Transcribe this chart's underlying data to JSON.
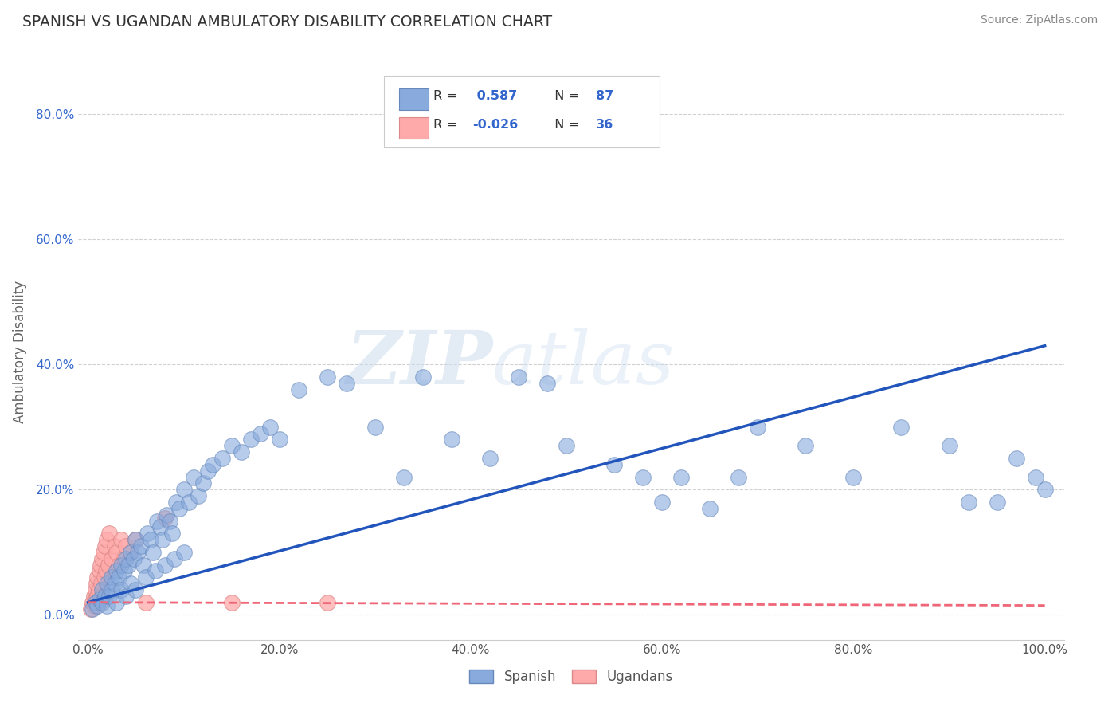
{
  "title": "SPANISH VS UGANDAN AMBULATORY DISABILITY CORRELATION CHART",
  "source_text": "Source: ZipAtlas.com",
  "xlabel": "",
  "ylabel": "Ambulatory Disability",
  "watermark_zip": "ZIP",
  "watermark_atlas": "atlas",
  "xlim": [
    -0.01,
    1.02
  ],
  "ylim": [
    -0.04,
    0.88
  ],
  "xticks": [
    0.0,
    0.2,
    0.4,
    0.6,
    0.8,
    1.0
  ],
  "yticks": [
    0.0,
    0.2,
    0.4,
    0.6,
    0.8
  ],
  "xtick_labels": [
    "0.0%",
    "20.0%",
    "40.0%",
    "60.0%",
    "80.0%",
    "100.0%"
  ],
  "ytick_labels": [
    "0.0%",
    "20.0%",
    "40.0%",
    "60.0%",
    "80.0%"
  ],
  "spanish_R": 0.587,
  "spanish_N": 87,
  "ugandan_R": -0.026,
  "ugandan_N": 36,
  "blue_scatter_color": "#88AADD",
  "blue_edge_color": "#6688BB",
  "pink_scatter_color": "#FFAAAA",
  "pink_edge_color": "#DD8888",
  "blue_line_color": "#2255BB",
  "pink_line_color": "#EE6677",
  "grid_color": "#CCCCCC",
  "title_color": "#333333",
  "source_color": "#888888",
  "ytick_color": "#3366CC",
  "xtick_color": "#555555",
  "background_color": "#FFFFFF",
  "legend_edge_color": "#CCCCCC",
  "legend_R_color": "#333333",
  "legend_val_color": "#3366CC",
  "sp_x": [
    0.005,
    0.008,
    0.01,
    0.012,
    0.015,
    0.015,
    0.018,
    0.02,
    0.02,
    0.022,
    0.025,
    0.025,
    0.028,
    0.03,
    0.03,
    0.032,
    0.035,
    0.035,
    0.038,
    0.04,
    0.04,
    0.042,
    0.045,
    0.045,
    0.048,
    0.05,
    0.05,
    0.052,
    0.055,
    0.058,
    0.06,
    0.062,
    0.065,
    0.068,
    0.07,
    0.072,
    0.075,
    0.078,
    0.08,
    0.082,
    0.085,
    0.088,
    0.09,
    0.092,
    0.095,
    0.1,
    0.1,
    0.105,
    0.11,
    0.115,
    0.12,
    0.125,
    0.13,
    0.14,
    0.15,
    0.16,
    0.17,
    0.18,
    0.19,
    0.2,
    0.22,
    0.25,
    0.27,
    0.3,
    0.33,
    0.35,
    0.38,
    0.42,
    0.45,
    0.48,
    0.5,
    0.55,
    0.58,
    0.62,
    0.65,
    0.7,
    0.75,
    0.8,
    0.85,
    0.9,
    0.92,
    0.95,
    0.97,
    0.99,
    1.0,
    0.6,
    0.68
  ],
  "sp_y": [
    0.01,
    0.02,
    0.015,
    0.025,
    0.02,
    0.04,
    0.03,
    0.015,
    0.05,
    0.03,
    0.04,
    0.06,
    0.05,
    0.02,
    0.07,
    0.06,
    0.04,
    0.08,
    0.07,
    0.03,
    0.09,
    0.08,
    0.05,
    0.1,
    0.09,
    0.04,
    0.12,
    0.1,
    0.11,
    0.08,
    0.06,
    0.13,
    0.12,
    0.1,
    0.07,
    0.15,
    0.14,
    0.12,
    0.08,
    0.16,
    0.15,
    0.13,
    0.09,
    0.18,
    0.17,
    0.1,
    0.2,
    0.18,
    0.22,
    0.19,
    0.21,
    0.23,
    0.24,
    0.25,
    0.27,
    0.26,
    0.28,
    0.29,
    0.3,
    0.28,
    0.36,
    0.38,
    0.37,
    0.3,
    0.22,
    0.38,
    0.28,
    0.25,
    0.38,
    0.37,
    0.27,
    0.24,
    0.22,
    0.22,
    0.17,
    0.3,
    0.27,
    0.22,
    0.3,
    0.27,
    0.18,
    0.18,
    0.25,
    0.22,
    0.2,
    0.18,
    0.22
  ],
  "ug_x": [
    0.003,
    0.005,
    0.006,
    0.007,
    0.008,
    0.008,
    0.009,
    0.01,
    0.01,
    0.011,
    0.012,
    0.012,
    0.013,
    0.014,
    0.015,
    0.015,
    0.016,
    0.017,
    0.018,
    0.019,
    0.02,
    0.021,
    0.022,
    0.025,
    0.028,
    0.03,
    0.032,
    0.035,
    0.038,
    0.04,
    0.045,
    0.05,
    0.06,
    0.08,
    0.15,
    0.25
  ],
  "ug_y": [
    0.01,
    0.02,
    0.03,
    0.015,
    0.04,
    0.025,
    0.05,
    0.03,
    0.06,
    0.04,
    0.07,
    0.02,
    0.08,
    0.05,
    0.09,
    0.03,
    0.1,
    0.06,
    0.11,
    0.07,
    0.12,
    0.08,
    0.13,
    0.09,
    0.11,
    0.1,
    0.08,
    0.12,
    0.09,
    0.11,
    0.1,
    0.12,
    0.02,
    0.155,
    0.02,
    0.02
  ],
  "sp_line_x": [
    0.0,
    1.0
  ],
  "sp_line_y": [
    0.02,
    0.43
  ],
  "ug_line_x": [
    0.0,
    1.0
  ],
  "ug_line_y": [
    0.02,
    0.015
  ]
}
